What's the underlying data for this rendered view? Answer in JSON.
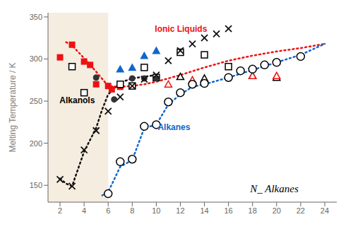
{
  "chart_data": {
    "type": "scatter",
    "ylabel": "Melting Temperature / K",
    "xlim": [
      1,
      25
    ],
    "ylim": [
      130,
      355
    ],
    "xticks": [
      2,
      4,
      6,
      8,
      10,
      12,
      14,
      16,
      18,
      20,
      22,
      24
    ],
    "yticks": [
      150,
      200,
      250,
      300,
      350
    ],
    "grid": false,
    "shade": {
      "xlim": [
        1,
        6.0
      ],
      "color": "#f5ede0"
    },
    "annotations": [
      {
        "text": "Ionic Liquids",
        "color": "#ee1111"
      },
      {
        "text": "Alkanols",
        "color": "#000000"
      },
      {
        "text": "Alkanes",
        "color": "#1166cc"
      },
      {
        "text": "N_ Alkanes",
        "color": "#000000"
      }
    ],
    "series": [
      {
        "type": "line",
        "line_style": "dotted",
        "color": "#111111",
        "x": [
          2,
          2.5,
          3,
          4,
          5,
          5.5,
          6,
          7,
          8,
          9,
          10
        ],
        "values": [
          158,
          152,
          149,
          190,
          218,
          240,
          258,
          272,
          277,
          279,
          281
        ]
      },
      {
        "type": "line",
        "line_style": "dotted",
        "color": "#ee1111",
        "x": [
          2.5,
          3,
          4,
          5,
          6,
          7,
          8,
          9,
          10,
          11,
          12,
          14,
          16,
          18,
          20,
          22,
          24
        ],
        "values": [
          320,
          316,
          301,
          285,
          268,
          267,
          268,
          270,
          273,
          277,
          281,
          290,
          298,
          304,
          309,
          313,
          318
        ]
      },
      {
        "type": "line",
        "line_style": "dotted",
        "color": "#1166cc",
        "x": [
          5.5,
          6,
          7,
          8,
          9,
          10,
          11,
          12,
          13,
          14,
          16,
          18,
          20,
          22,
          24
        ],
        "values": [
          138,
          142,
          172,
          180,
          218,
          222,
          246,
          258,
          267,
          270,
          278,
          287,
          296,
          305,
          318
        ]
      },
      {
        "type": "scatter",
        "marker": "square",
        "color": "#ee1111",
        "x": [
          2,
          3,
          4,
          4.5,
          5,
          6,
          6.3,
          7
        ],
        "values": [
          302,
          317,
          297,
          293,
          270,
          268,
          264,
          267
        ]
      },
      {
        "type": "scatter",
        "marker": "open_square",
        "color": "#000000",
        "x": [
          3,
          4,
          7,
          8,
          9,
          10,
          12,
          14,
          16
        ],
        "values": [
          291,
          260,
          270,
          268,
          290,
          278,
          308,
          305,
          291
        ]
      },
      {
        "type": "scatter",
        "marker": "open_triangle",
        "color": "#000000",
        "x": [
          12,
          14,
          18,
          20
        ],
        "values": [
          279,
          277,
          280,
          278
        ]
      },
      {
        "type": "scatter",
        "marker": "open_triangle",
        "color": "#ee1111",
        "x": [
          11,
          13,
          18,
          20
        ],
        "values": [
          270,
          275,
          280,
          280
        ]
      },
      {
        "type": "scatter",
        "marker": "circle",
        "color": "#333333",
        "x": [
          5,
          6.5,
          8,
          9,
          10
        ],
        "values": [
          278,
          252,
          277,
          277,
          277
        ]
      },
      {
        "type": "scatter",
        "marker": "triangle",
        "color": "#1166cc",
        "x": [
          7,
          8,
          9,
          10
        ],
        "values": [
          288,
          290,
          304,
          310
        ]
      },
      {
        "type": "scatter",
        "marker": "x",
        "color": "#111111",
        "x": [
          2,
          3,
          4,
          5,
          6,
          7,
          8,
          9,
          10,
          11,
          12,
          13,
          14,
          15,
          16
        ],
        "values": [
          157,
          149,
          192,
          215,
          238,
          255,
          268,
          276,
          281,
          298,
          310,
          318,
          325,
          330,
          336
        ]
      },
      {
        "type": "scatter",
        "marker": "open_circle",
        "color": "#000000",
        "x": [
          6,
          7,
          8,
          9,
          10,
          11,
          12,
          13,
          14,
          16,
          17,
          18,
          19,
          20,
          22
        ],
        "values": [
          140,
          178,
          181,
          220,
          222,
          249,
          260,
          270,
          271,
          278,
          286,
          288,
          293,
          296,
          303
        ]
      }
    ]
  }
}
